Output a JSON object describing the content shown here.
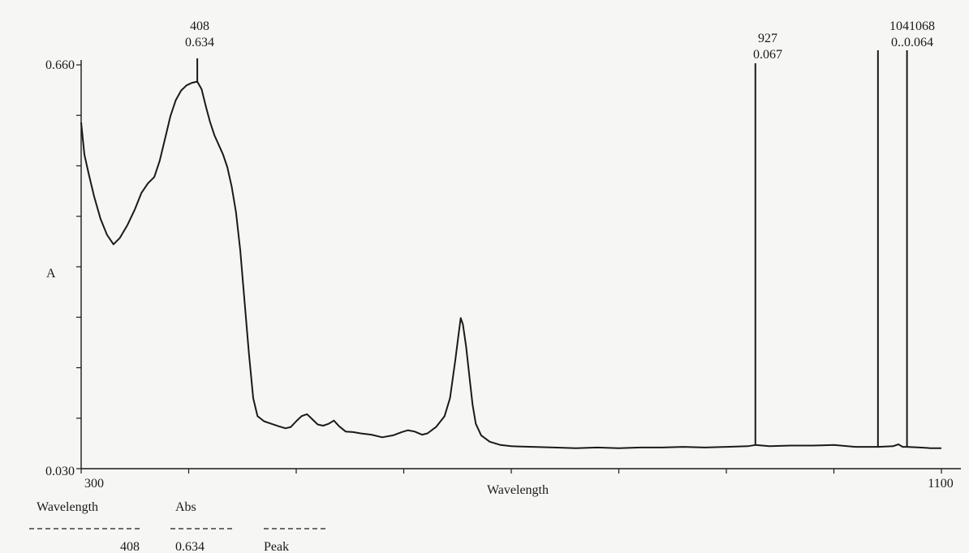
{
  "chart_data": {
    "type": "line",
    "ylabel": "A",
    "xlabel": "Wavelength",
    "xlim": [
      300,
      1100
    ],
    "ylim": [
      0.03,
      0.66
    ],
    "x_tick_labels": [
      {
        "value": 300,
        "label": "300"
      },
      {
        "value": 1100,
        "label": "1100"
      }
    ],
    "y_tick_labels": [
      {
        "value": 0.66,
        "label": "0.660"
      },
      {
        "value": 0.03,
        "label": "0.030"
      }
    ],
    "series": [
      {
        "points": [
          [
            300,
            0.57
          ],
          [
            303,
            0.52
          ],
          [
            307,
            0.49
          ],
          [
            312,
            0.455
          ],
          [
            318,
            0.42
          ],
          [
            324,
            0.395
          ],
          [
            330,
            0.38
          ],
          [
            336,
            0.39
          ],
          [
            343,
            0.41
          ],
          [
            350,
            0.435
          ],
          [
            356,
            0.46
          ],
          [
            362,
            0.475
          ],
          [
            368,
            0.485
          ],
          [
            373,
            0.51
          ],
          [
            378,
            0.545
          ],
          [
            383,
            0.58
          ],
          [
            388,
            0.605
          ],
          [
            393,
            0.62
          ],
          [
            398,
            0.628
          ],
          [
            403,
            0.632
          ],
          [
            408,
            0.634
          ],
          [
            412,
            0.622
          ],
          [
            416,
            0.595
          ],
          [
            420,
            0.57
          ],
          [
            424,
            0.55
          ],
          [
            428,
            0.535
          ],
          [
            432,
            0.52
          ],
          [
            436,
            0.5
          ],
          [
            440,
            0.47
          ],
          [
            444,
            0.43
          ],
          [
            448,
            0.37
          ],
          [
            452,
            0.29
          ],
          [
            456,
            0.21
          ],
          [
            460,
            0.14
          ],
          [
            464,
            0.112
          ],
          [
            470,
            0.104
          ],
          [
            477,
            0.1
          ],
          [
            484,
            0.096
          ],
          [
            490,
            0.093
          ],
          [
            495,
            0.095
          ],
          [
            500,
            0.104
          ],
          [
            505,
            0.112
          ],
          [
            510,
            0.115
          ],
          [
            515,
            0.107
          ],
          [
            520,
            0.099
          ],
          [
            525,
            0.097
          ],
          [
            530,
            0.1
          ],
          [
            535,
            0.105
          ],
          [
            540,
            0.096
          ],
          [
            546,
            0.088
          ],
          [
            553,
            0.087
          ],
          [
            560,
            0.085
          ],
          [
            570,
            0.083
          ],
          [
            580,
            0.079
          ],
          [
            590,
            0.082
          ],
          [
            598,
            0.087
          ],
          [
            604,
            0.09
          ],
          [
            610,
            0.088
          ],
          [
            617,
            0.083
          ],
          [
            622,
            0.085
          ],
          [
            630,
            0.095
          ],
          [
            638,
            0.112
          ],
          [
            643,
            0.14
          ],
          [
            648,
            0.2
          ],
          [
            651,
            0.24
          ],
          [
            653,
            0.265
          ],
          [
            655,
            0.255
          ],
          [
            658,
            0.22
          ],
          [
            661,
            0.175
          ],
          [
            664,
            0.13
          ],
          [
            667,
            0.1
          ],
          [
            672,
            0.082
          ],
          [
            680,
            0.072
          ],
          [
            690,
            0.067
          ],
          [
            700,
            0.065
          ],
          [
            720,
            0.064
          ],
          [
            740,
            0.063
          ],
          [
            760,
            0.062
          ],
          [
            780,
            0.063
          ],
          [
            800,
            0.062
          ],
          [
            820,
            0.063
          ],
          [
            840,
            0.063
          ],
          [
            860,
            0.064
          ],
          [
            880,
            0.063
          ],
          [
            900,
            0.064
          ],
          [
            920,
            0.065
          ],
          [
            927,
            0.067
          ],
          [
            940,
            0.065
          ],
          [
            960,
            0.066
          ],
          [
            980,
            0.066
          ],
          [
            1000,
            0.067
          ],
          [
            1020,
            0.064
          ],
          [
            1041,
            0.064
          ],
          [
            1055,
            0.065
          ],
          [
            1060,
            0.068
          ],
          [
            1064,
            0.064
          ],
          [
            1068,
            0.064
          ],
          [
            1080,
            0.063
          ],
          [
            1090,
            0.062
          ],
          [
            1100,
            0.062
          ]
        ]
      }
    ],
    "peak_markers": [
      {
        "wavelength": 408,
        "abs": 0.634,
        "label_top": "408",
        "label_bottom": "0.634"
      },
      {
        "wavelength": 927,
        "abs": 0.067,
        "label_top": "927",
        "label_bottom": "0.067"
      },
      {
        "wavelength": 1041,
        "abs": 0.064
      },
      {
        "wavelength": 1068,
        "abs": 0.064
      }
    ],
    "merged_marker_label": {
      "top": "1041068",
      "bottom": "0..0.064"
    },
    "peak_table": {
      "headers": [
        "Wavelength",
        "Abs"
      ],
      "rows": [
        {
          "wavelength": "408",
          "abs": "0.634",
          "type": "Peak"
        }
      ]
    }
  }
}
